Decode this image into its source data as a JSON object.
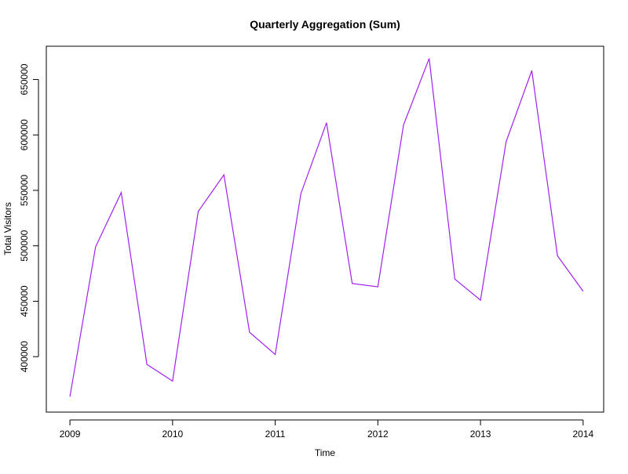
{
  "chart_data": {
    "type": "line",
    "title": "Quarterly Aggregation (Sum)",
    "xlabel": "Time",
    "ylabel": "Total Visitors",
    "x_ticks": [
      2009,
      2010,
      2011,
      2012,
      2013,
      2014
    ],
    "y_ticks": [
      400000,
      450000,
      500000,
      550000,
      600000,
      650000
    ],
    "xlim": [
      2008.77,
      2014.2
    ],
    "ylim": [
      350000,
      680000
    ],
    "grid": false,
    "legend": "none",
    "series": [
      {
        "color": "#A020F0",
        "x": [
          2009.0,
          2009.25,
          2009.5,
          2009.75,
          2010.0,
          2010.25,
          2010.5,
          2010.75,
          2011.0,
          2011.25,
          2011.5,
          2011.75,
          2012.0,
          2012.25,
          2012.5,
          2012.75,
          2013.0,
          2013.25,
          2013.5,
          2013.75,
          2014.0
        ],
        "values": [
          364000,
          499000,
          548000,
          393000,
          378000,
          531000,
          564000,
          422000,
          402000,
          547000,
          611000,
          466000,
          463000,
          609000,
          669000,
          470000,
          451000,
          594000,
          658000,
          491000,
          459000
        ]
      }
    ]
  }
}
